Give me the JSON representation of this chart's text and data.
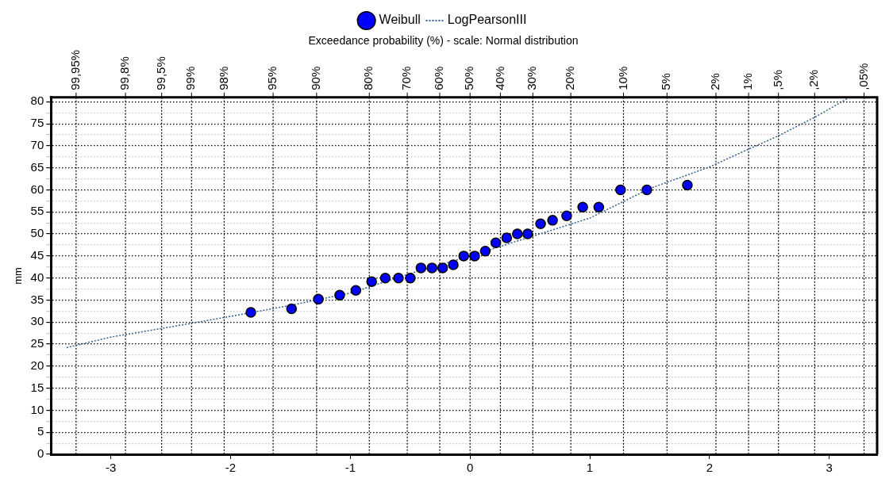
{
  "chart_data": {
    "type": "scatter",
    "subtitle": "Exceedance probability (%) - scale: Normal distribution",
    "ylabel": "mm",
    "xlim": [
      -3.5,
      3.4
    ],
    "xticks": [
      -3,
      -2,
      -1,
      0,
      1,
      2,
      3
    ],
    "ylim": [
      0,
      81
    ],
    "yticks": [
      0,
      {
        "value": 2.5,
        "label": null
      },
      5,
      {
        "value": 7.5,
        "label": null
      },
      10,
      {
        "value": 12.5,
        "label": null
      },
      15,
      {
        "value": 17.5,
        "label": null
      },
      20,
      {
        "value": 22.5,
        "label": null
      },
      25,
      {
        "value": 27.5,
        "label": null
      },
      30,
      {
        "value": 32.5,
        "label": null
      },
      35,
      {
        "value": 37.5,
        "label": null
      },
      40,
      {
        "value": 42.5,
        "label": null
      },
      45,
      {
        "value": 47.5,
        "label": null
      },
      50,
      {
        "value": 52.5,
        "label": null
      },
      55,
      {
        "value": 57.5,
        "label": null
      },
      60,
      {
        "value": 62.5,
        "label": null
      },
      65,
      {
        "value": 67.5,
        "label": null
      },
      70,
      {
        "value": 72.5,
        "label": null
      },
      75,
      {
        "value": 77.5,
        "label": null
      },
      80
    ],
    "grid": true,
    "legend": "top",
    "annotations": [
      "99,95%",
      "99,8%",
      "99,5%",
      "99%",
      "98%",
      "95%",
      "90%",
      "80%",
      "70%",
      "60%",
      "50%",
      "40%",
      "30%",
      "20%",
      "10%",
      "5%",
      "2%",
      "1%",
      ",5%",
      ",2%",
      ",05%"
    ],
    "series": [
      {
        "name": "Weibull",
        "marker": "circle",
        "color": "#0000ff",
        "x": [
          -1.831,
          -1.491,
          -1.267,
          -1.089,
          -0.954,
          -0.822,
          -0.708,
          -0.598,
          -0.499,
          -0.41,
          -0.318,
          -0.229,
          -0.14,
          -0.053,
          0.038,
          0.127,
          0.215,
          0.306,
          0.395,
          0.481,
          0.589,
          0.689,
          0.807,
          0.941,
          1.075,
          1.257,
          1.477,
          1.815
        ],
        "values": [
          32.2,
          33.0,
          35.2,
          36.1,
          37.2,
          39.2,
          40.0,
          40.0,
          40.0,
          42.3,
          42.3,
          42.3,
          43.0,
          45.0,
          45.0,
          46.1,
          48.0,
          49.1,
          50.0,
          50.0,
          52.3,
          53.1,
          54.1,
          56.1,
          56.1,
          60.0,
          60.0,
          61.1
        ]
      },
      {
        "name": "LogPearsonIII",
        "type": "line",
        "marker": "none",
        "line_style": "dotted",
        "color": "#2f5f8f",
        "x": [
          -3.37,
          -3,
          -2.5,
          -2,
          -1.5,
          -1,
          -0.5,
          0,
          0.5,
          1,
          1.5,
          2,
          2.33,
          2.57,
          2.88,
          3.17
        ],
        "values": [
          24.2,
          26.6,
          28.9,
          31.3,
          33.8,
          36.6,
          41.0,
          45.0,
          49.3,
          53.6,
          60.3,
          65.2,
          69.3,
          72.2,
          76.5,
          81
        ]
      }
    ]
  }
}
